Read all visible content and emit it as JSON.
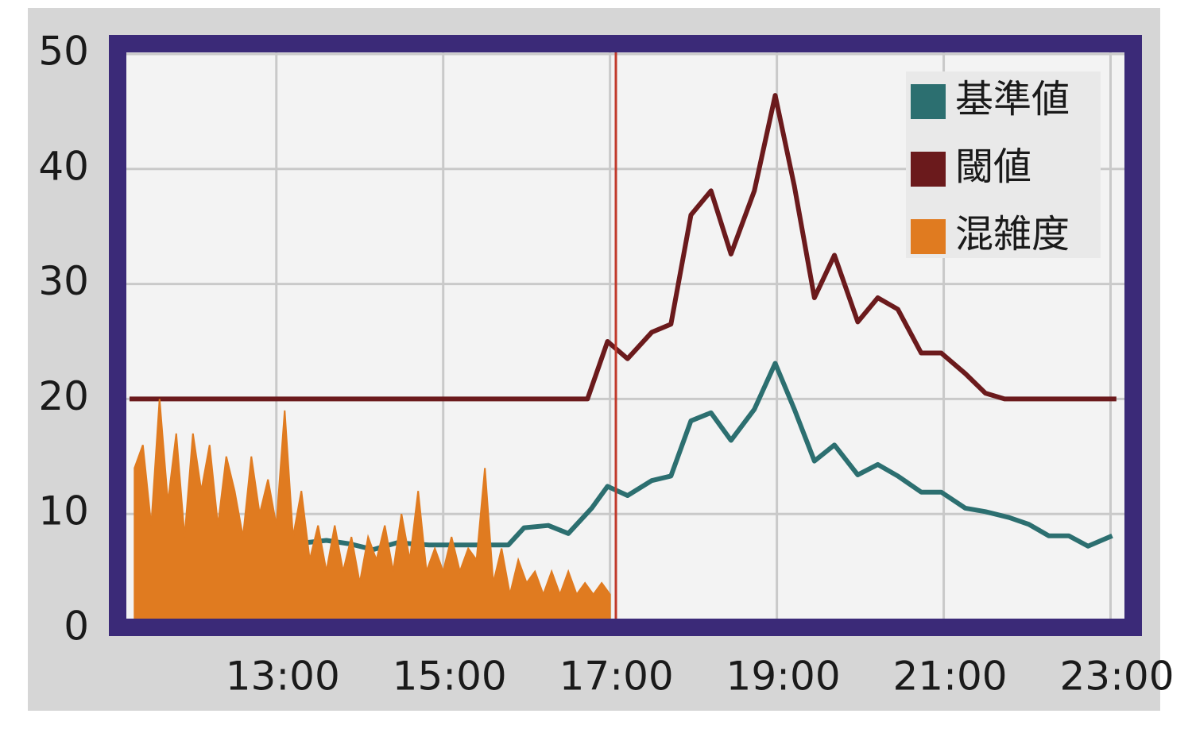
{
  "chart_data": {
    "type": "line",
    "ylim": [
      0,
      50
    ],
    "yticks": [
      0,
      10,
      20,
      30,
      40,
      50
    ],
    "xlim": [
      11.24,
      23.1
    ],
    "xticks": [
      {
        "value": 13,
        "label": "13:00"
      },
      {
        "value": 15,
        "label": "15:00"
      },
      {
        "value": 17,
        "label": "17:00"
      },
      {
        "value": 19,
        "label": "19:00"
      },
      {
        "value": 21,
        "label": "21:00"
      },
      {
        "value": 23,
        "label": "23:00"
      }
    ],
    "grid": true,
    "legend": "upper right",
    "cursor_x": 17.07,
    "series": [
      {
        "name": "基準値",
        "color": "#2c6f70",
        "style": "line",
        "x": [
          13.35,
          13.6,
          13.88,
          14.16,
          14.45,
          14.83,
          15.4,
          15.78,
          15.97,
          16.26,
          16.5,
          16.78,
          16.97,
          17.21,
          17.5,
          17.73,
          17.97,
          18.21,
          18.45,
          18.73,
          18.98,
          19.21,
          19.45,
          19.69,
          19.97,
          20.21,
          20.45,
          20.73,
          20.97,
          21.26,
          21.5,
          21.78,
          22.02,
          22.26,
          22.5,
          22.73,
          23.02
        ],
        "values": [
          7.5,
          7.7,
          7.4,
          6.9,
          7.5,
          7.3,
          7.3,
          7.3,
          8.8,
          9.0,
          8.3,
          10.5,
          12.4,
          11.6,
          12.9,
          13.3,
          18.1,
          18.8,
          16.4,
          19.1,
          23.1,
          19.1,
          14.6,
          16.0,
          13.4,
          14.3,
          13.3,
          11.9,
          11.9,
          10.5,
          10.2,
          9.7,
          9.1,
          8.1,
          8.1,
          7.2,
          8.1
        ]
      },
      {
        "name": "閾値",
        "color": "#6b1a1c",
        "style": "line",
        "x": [
          11.24,
          16.73,
          16.97,
          17.21,
          17.5,
          17.73,
          17.97,
          18.21,
          18.45,
          18.73,
          18.98,
          19.21,
          19.45,
          19.69,
          19.97,
          20.21,
          20.45,
          20.73,
          20.97,
          21.26,
          21.5,
          21.73,
          23.07
        ],
        "values": [
          20,
          20,
          25.0,
          23.5,
          25.8,
          26.5,
          36.0,
          38.1,
          32.6,
          38.1,
          46.4,
          38.5,
          28.8,
          32.5,
          26.7,
          28.8,
          27.8,
          24.0,
          24.0,
          22.2,
          20.5,
          20,
          20
        ]
      },
      {
        "name": "混雑度",
        "color": "#e07b20",
        "style": "area",
        "x": [
          11.3,
          11.4,
          11.5,
          11.6,
          11.7,
          11.8,
          11.9,
          12.0,
          12.1,
          12.2,
          12.3,
          12.4,
          12.5,
          12.6,
          12.7,
          12.8,
          12.9,
          13.0,
          13.1,
          13.2,
          13.3,
          13.4,
          13.5,
          13.6,
          13.7,
          13.8,
          13.9,
          14.0,
          14.1,
          14.2,
          14.3,
          14.4,
          14.5,
          14.6,
          14.7,
          14.8,
          14.9,
          15.0,
          15.1,
          15.2,
          15.3,
          15.4,
          15.5,
          15.6,
          15.7,
          15.8,
          15.9,
          16.0,
          16.1,
          16.2,
          16.3,
          16.4,
          16.5,
          16.6,
          16.7,
          16.8,
          16.9,
          17.0
        ],
        "values": [
          14,
          16,
          9,
          20,
          11,
          17,
          8,
          17,
          12,
          16,
          9,
          15,
          12,
          8,
          15,
          10,
          13,
          9,
          19,
          8,
          12,
          6,
          9,
          5,
          9,
          5,
          8,
          4,
          8,
          6,
          9,
          5,
          10,
          6,
          12,
          5,
          7,
          5,
          8,
          5,
          7,
          6,
          14,
          4,
          7,
          3,
          6,
          4,
          5,
          3,
          5,
          3,
          5,
          3,
          4,
          3,
          4,
          3
        ]
      }
    ]
  }
}
